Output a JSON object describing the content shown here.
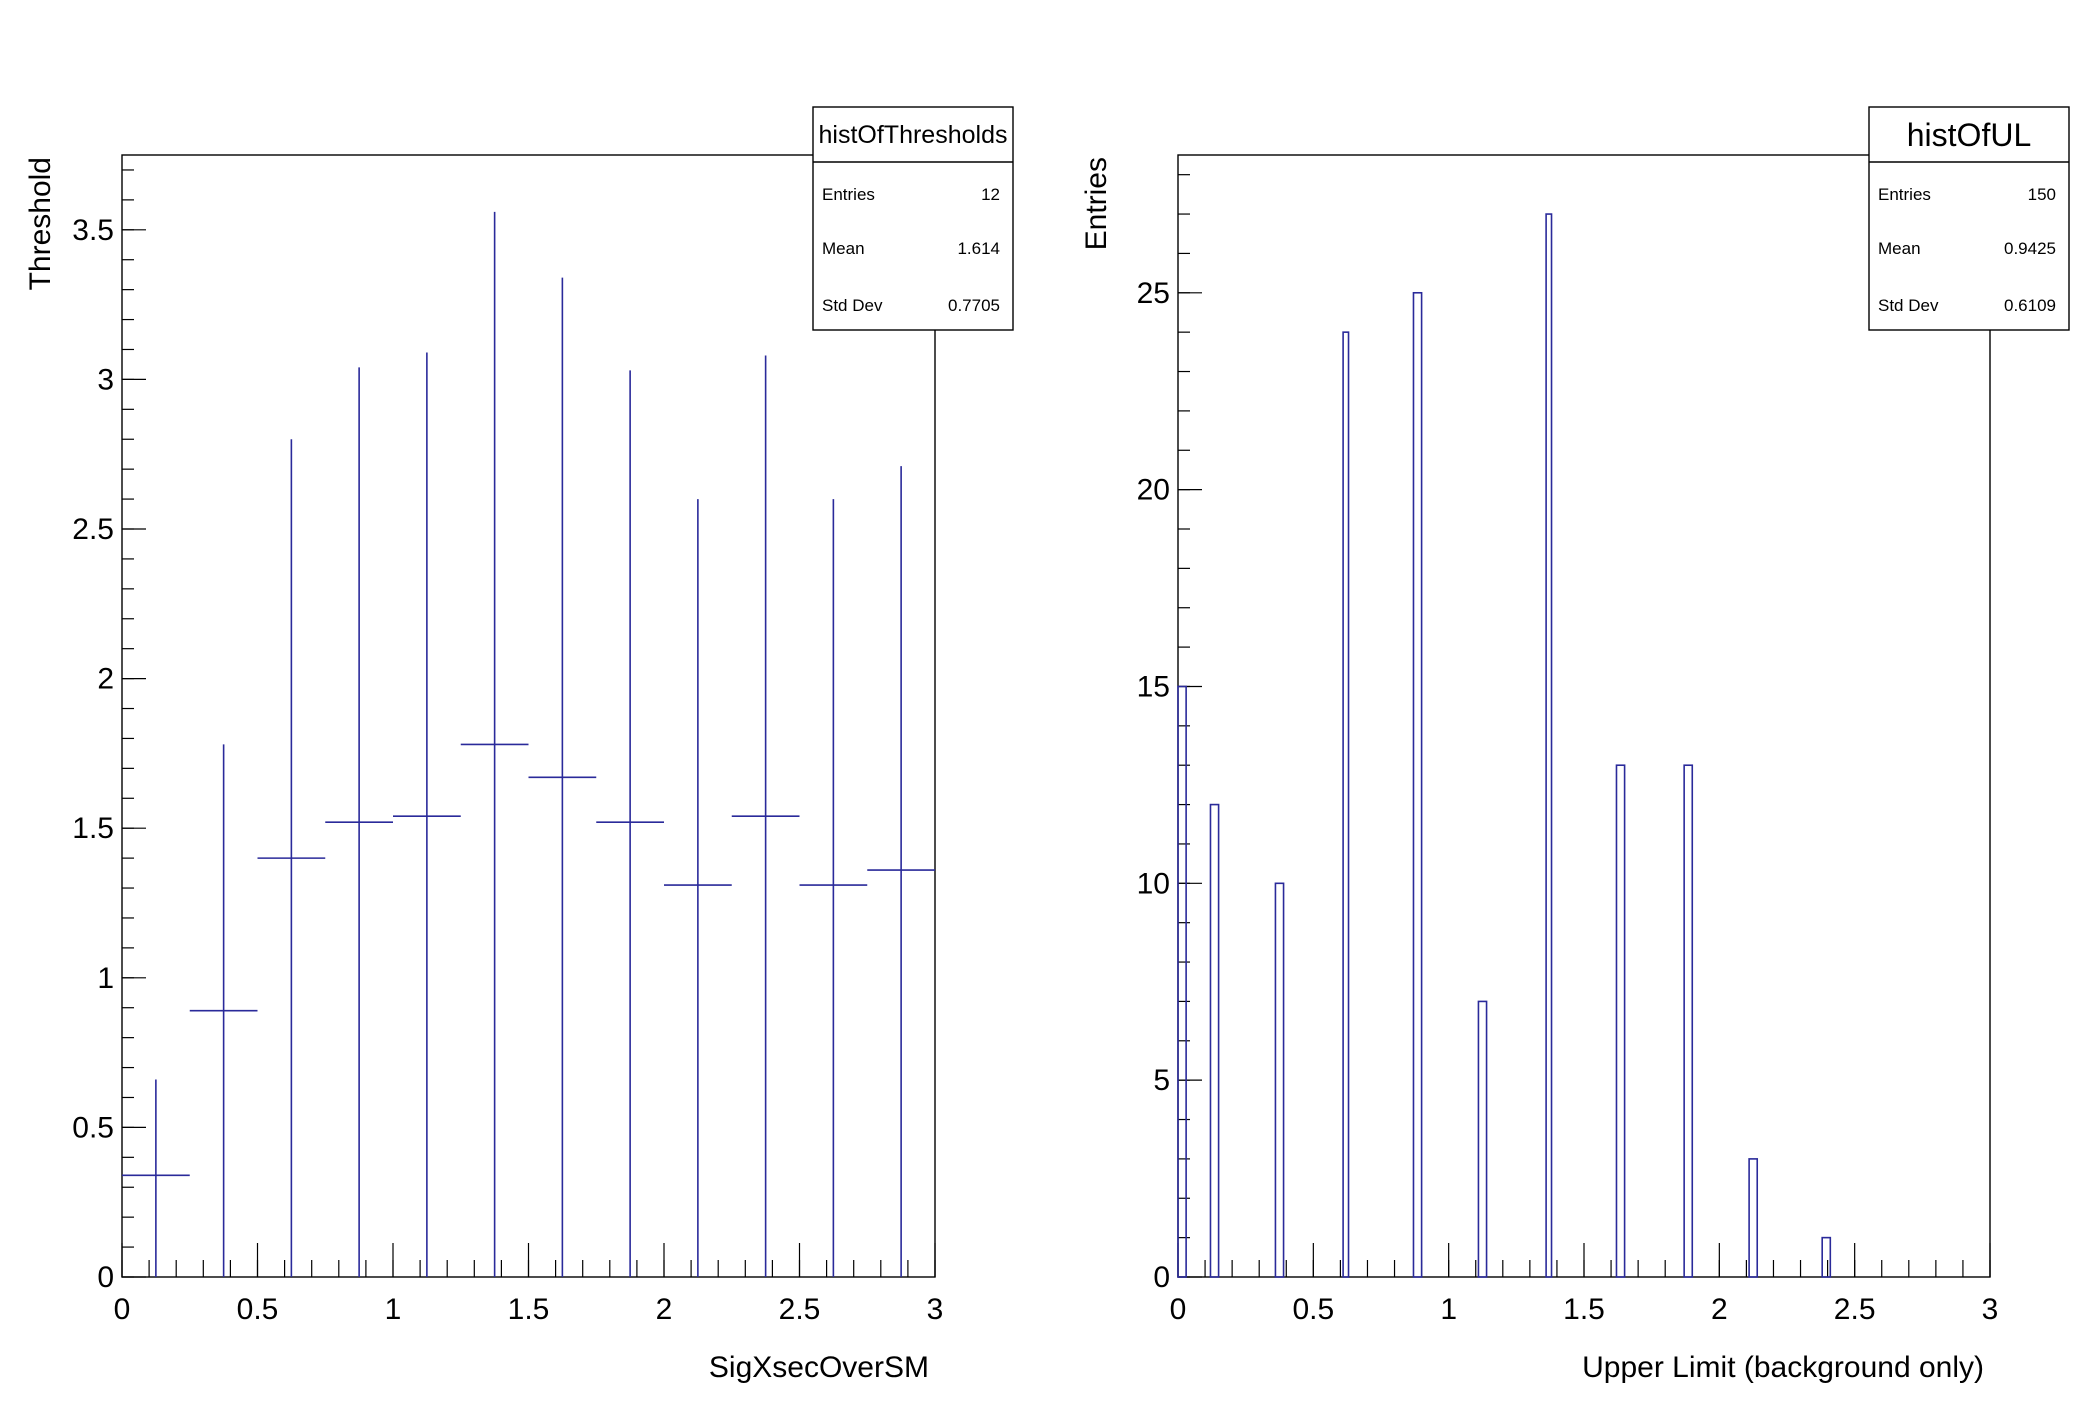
{
  "chart_data": [
    {
      "type": "errorbar",
      "xlabel": "SigXsecOverSM",
      "ylabel": "Threshold",
      "xlim": [
        0,
        3
      ],
      "ylim": [
        0,
        3.75
      ],
      "x_ticks": [
        "0",
        "0.5",
        "1",
        "1.5",
        "2",
        "2.5",
        "3"
      ],
      "y_ticks": [
        "0",
        "0.5",
        "1",
        "1.5",
        "2",
        "2.5",
        "3",
        "3.5"
      ],
      "bin_width": 0.25,
      "x": [
        0.125,
        0.375,
        0.625,
        0.875,
        1.125,
        1.375,
        1.625,
        1.875,
        2.125,
        2.375,
        2.625,
        2.875
      ],
      "values": [
        0.34,
        0.89,
        1.4,
        1.52,
        1.54,
        1.78,
        1.67,
        1.52,
        1.31,
        1.54,
        1.31,
        1.36
      ],
      "err_high": [
        0.66,
        1.78,
        2.8,
        3.04,
        3.09,
        3.56,
        3.34,
        3.03,
        2.6,
        3.08,
        2.6,
        2.71
      ],
      "err_low": [
        0,
        0,
        0,
        0,
        0,
        0,
        0,
        0,
        0,
        0,
        0,
        0
      ],
      "stats": {
        "title": "histOfThresholds",
        "rows": [
          {
            "label": "Entries",
            "value": "12"
          },
          {
            "label": "Mean",
            "value": "1.614"
          },
          {
            "label": "Std Dev",
            "value": "0.7705"
          }
        ]
      },
      "color": "#2a2a9a"
    },
    {
      "type": "histogram",
      "xlabel": "Upper Limit (background only)",
      "ylabel": "Entries",
      "xlim": [
        0,
        3
      ],
      "ylim": [
        0,
        28.5
      ],
      "x_ticks": [
        "0",
        "0.5",
        "1",
        "1.5",
        "2",
        "2.5",
        "3"
      ],
      "y_ticks": [
        "0",
        "5",
        "10",
        "15",
        "20",
        "25"
      ],
      "bins": [
        {
          "x0": 0.0,
          "x1": 0.03,
          "value": 15
        },
        {
          "x0": 0.12,
          "x1": 0.15,
          "value": 12
        },
        {
          "x0": 0.36,
          "x1": 0.39,
          "value": 10
        },
        {
          "x0": 0.61,
          "x1": 0.63,
          "value": 24
        },
        {
          "x0": 0.87,
          "x1": 0.9,
          "value": 25
        },
        {
          "x0": 1.11,
          "x1": 1.14,
          "value": 7
        },
        {
          "x0": 1.36,
          "x1": 1.38,
          "value": 27
        },
        {
          "x0": 1.62,
          "x1": 1.65,
          "value": 13
        },
        {
          "x0": 1.87,
          "x1": 1.9,
          "value": 13
        },
        {
          "x0": 2.11,
          "x1": 2.14,
          "value": 3
        },
        {
          "x0": 2.38,
          "x1": 2.41,
          "value": 1
        }
      ],
      "stats": {
        "title": "histOfUL",
        "rows": [
          {
            "label": "Entries",
            "value": "150"
          },
          {
            "label": "Mean",
            "value": "0.9425"
          },
          {
            "label": "Std Dev",
            "value": "0.6109"
          }
        ]
      },
      "color": "#2a2a9a"
    }
  ]
}
